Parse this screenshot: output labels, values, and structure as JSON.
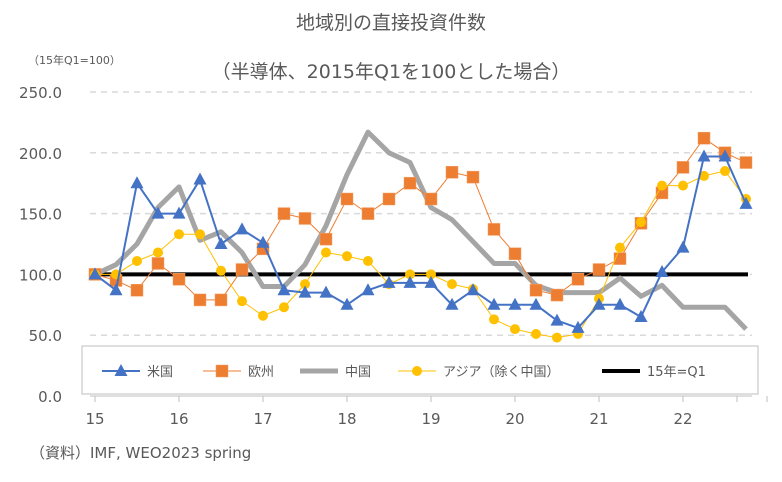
{
  "chart_data": {
    "type": "line",
    "title": "地域別の直接投資件数",
    "subtitle": "（半導体、2015年Q1を100とした場合）",
    "unit_label": "（15年Q1=100）",
    "source": "（資料）IMF, WEO2023 spring",
    "ylim": [
      0,
      250
    ],
    "yticks": [
      "0.0",
      "50.0",
      "100.0",
      "150.0",
      "200.0",
      "250.0"
    ],
    "xtick_labels": [
      "15",
      "16",
      "17",
      "18",
      "19",
      "20",
      "21",
      "22"
    ],
    "x_quarters_start": "2015Q1",
    "grid": true,
    "legend_position": "bottom-inside",
    "colors": {
      "us": "#4472C4",
      "eu": "#ED7D31",
      "china": "#A5A5A5",
      "asia": "#FFC000",
      "base": "#000000"
    },
    "series": [
      {
        "key": "us",
        "name": "米国",
        "marker": "triangle",
        "values": [
          100,
          87,
          175,
          150,
          150,
          178,
          125,
          137,
          126,
          87,
          85,
          85,
          75,
          87,
          93,
          93,
          93,
          75,
          87,
          75,
          75,
          75,
          62,
          56,
          75,
          75,
          65,
          102,
          122,
          197,
          197,
          158
        ]
      },
      {
        "key": "eu",
        "name": "欧州",
        "marker": "square",
        "values": [
          100,
          95,
          87,
          109,
          96,
          79,
          79,
          104,
          121,
          150,
          146,
          129,
          162,
          150,
          162,
          175,
          162,
          184,
          180,
          137,
          117,
          87,
          83,
          96,
          104,
          113,
          142,
          167,
          188,
          212,
          200,
          192
        ]
      },
      {
        "key": "china",
        "name": "中国",
        "marker": "none",
        "values": [
          100,
          108,
          125,
          155,
          172,
          128,
          135,
          118,
          90,
          90,
          108,
          140,
          182,
          217,
          200,
          192,
          155,
          145,
          127,
          109,
          109,
          91,
          85,
          85,
          85,
          97,
          82,
          91,
          73,
          73,
          73,
          55
        ]
      },
      {
        "key": "asia",
        "name": "アジア（除く中国）",
        "marker": "circle",
        "values": [
          100,
          100,
          111,
          118,
          133,
          133,
          103,
          78,
          66,
          73,
          92,
          118,
          115,
          111,
          92,
          100,
          100,
          92,
          88,
          63,
          55,
          51,
          48,
          51,
          80,
          122,
          143,
          173,
          173,
          181,
          185,
          162
        ]
      },
      {
        "key": "base",
        "name": "15年=Q1",
        "marker": "none",
        "values": [
          100,
          100,
          100,
          100,
          100,
          100,
          100,
          100,
          100,
          100,
          100,
          100,
          100,
          100,
          100,
          100,
          100,
          100,
          100,
          100,
          100,
          100,
          100,
          100,
          100,
          100,
          100,
          100,
          100,
          100,
          100,
          100
        ]
      }
    ]
  }
}
